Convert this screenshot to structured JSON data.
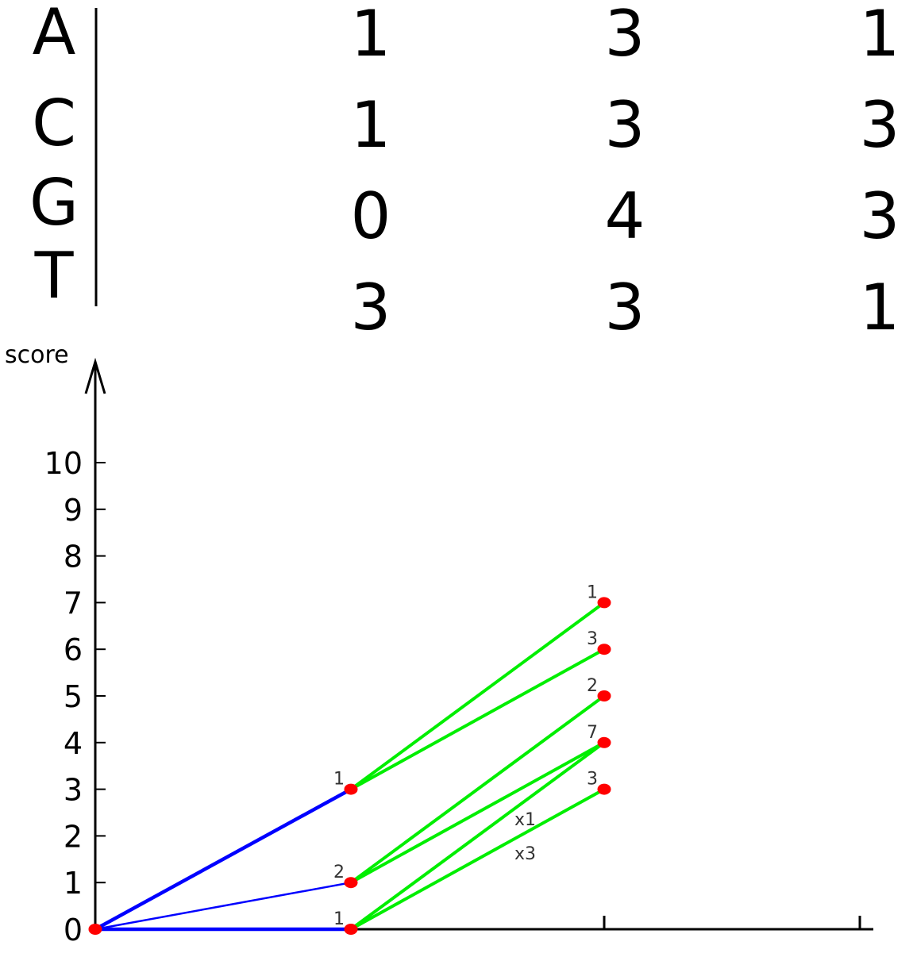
{
  "matrix": {
    "rows": [
      "A",
      "C",
      "G",
      "T"
    ],
    "values": [
      [
        1,
        3,
        1
      ],
      [
        1,
        3,
        3
      ],
      [
        0,
        4,
        3
      ],
      [
        3,
        3,
        1
      ]
    ]
  },
  "chart_data": {
    "type": "graph",
    "ylabel": "score",
    "yticks": [
      0,
      1,
      2,
      3,
      4,
      5,
      6,
      7,
      8,
      9,
      10
    ],
    "x_positions": [
      0,
      1,
      2,
      3
    ],
    "nodes": [
      {
        "x": 0,
        "y": 0,
        "label": ""
      },
      {
        "x": 1,
        "y": 3,
        "label": "1"
      },
      {
        "x": 1,
        "y": 1,
        "label": "2"
      },
      {
        "x": 1,
        "y": 0,
        "label": "1"
      },
      {
        "x": 2,
        "y": 7,
        "label": "1"
      },
      {
        "x": 2,
        "y": 6,
        "label": "3"
      },
      {
        "x": 2,
        "y": 5,
        "label": "2"
      },
      {
        "x": 2,
        "y": 4,
        "label": "7"
      },
      {
        "x": 2,
        "y": 3,
        "label": "3"
      }
    ],
    "edges": [
      {
        "from": [
          0,
          0
        ],
        "to": [
          1,
          3
        ],
        "color": "#0000ff",
        "weight": "thick"
      },
      {
        "from": [
          0,
          0
        ],
        "to": [
          1,
          1
        ],
        "color": "#0000ff",
        "weight": "thin"
      },
      {
        "from": [
          0,
          0
        ],
        "to": [
          1,
          0
        ],
        "color": "#0000ff",
        "weight": "thick"
      },
      {
        "from": [
          1,
          3
        ],
        "to": [
          2,
          7
        ],
        "color": "#00ee00",
        "weight": "normal"
      },
      {
        "from": [
          1,
          3
        ],
        "to": [
          2,
          6
        ],
        "color": "#00ee00",
        "weight": "normal"
      },
      {
        "from": [
          1,
          1
        ],
        "to": [
          2,
          5
        ],
        "color": "#00ee00",
        "weight": "normal"
      },
      {
        "from": [
          1,
          1
        ],
        "to": [
          2,
          4
        ],
        "color": "#00ee00",
        "weight": "normal"
      },
      {
        "from": [
          1,
          0
        ],
        "to": [
          2,
          4
        ],
        "color": "#00ee00",
        "weight": "normal"
      },
      {
        "from": [
          1,
          0
        ],
        "to": [
          2,
          3
        ],
        "color": "#00ee00",
        "weight": "normal"
      }
    ],
    "edge_labels": [
      "x1",
      "x3"
    ],
    "node_color": "#ff0000"
  }
}
